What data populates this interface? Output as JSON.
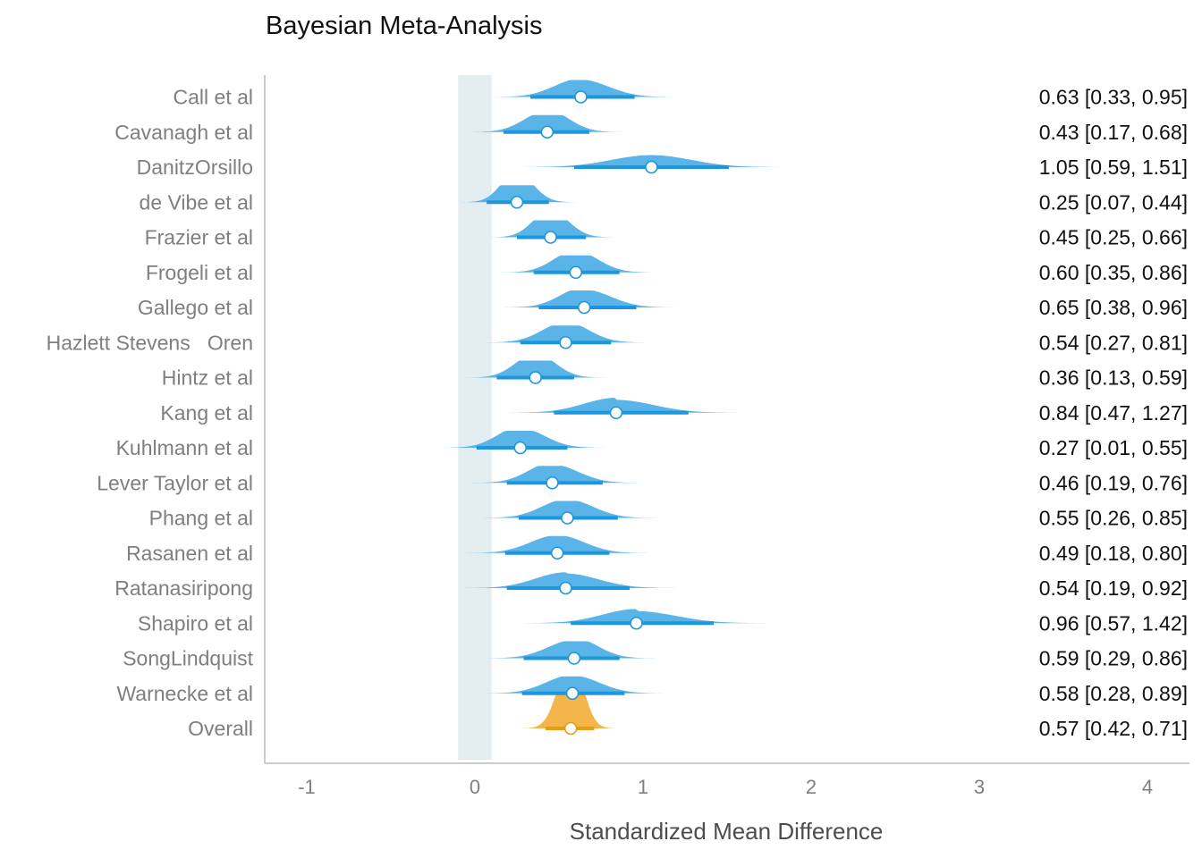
{
  "chart_data": {
    "type": "forest",
    "title": "Bayesian Meta-Analysis",
    "xlabel": "Standardized Mean Difference",
    "ylabel": "",
    "xlim": [
      -1.25,
      4.25
    ],
    "xticks": [
      "-1",
      "0",
      "1",
      "2",
      "3",
      "4"
    ],
    "xtick_values": [
      -1,
      0,
      1,
      2,
      3,
      4
    ],
    "rope": [
      -0.1,
      0.1
    ],
    "grid": false,
    "colors": {
      "study": "#5ab4e8",
      "study_interval": "#1c96dd",
      "overall": "#f4b64a",
      "overall_interval": "#e39d15",
      "rope_band": "#e4eef0",
      "point_fill": "#ffffff"
    },
    "studies": [
      {
        "name": "Call et al",
        "mean": 0.63,
        "lower": 0.33,
        "upper": 0.95,
        "label": "0.63 [0.33, 0.95]",
        "overall": false
      },
      {
        "name": "Cavanagh et al",
        "mean": 0.43,
        "lower": 0.17,
        "upper": 0.68,
        "label": "0.43 [0.17, 0.68]",
        "overall": false
      },
      {
        "name": "DanitzOrsillo",
        "mean": 1.05,
        "lower": 0.59,
        "upper": 1.51,
        "label": "1.05 [0.59, 1.51]",
        "overall": false
      },
      {
        "name": "de Vibe et al",
        "mean": 0.25,
        "lower": 0.07,
        "upper": 0.44,
        "label": "0.25 [0.07, 0.44]",
        "overall": false
      },
      {
        "name": "Frazier et al",
        "mean": 0.45,
        "lower": 0.25,
        "upper": 0.66,
        "label": "0.45 [0.25, 0.66]",
        "overall": false
      },
      {
        "name": "Frogeli et al",
        "mean": 0.6,
        "lower": 0.35,
        "upper": 0.86,
        "label": "0.60 [0.35, 0.86]",
        "overall": false
      },
      {
        "name": "Gallego et al",
        "mean": 0.65,
        "lower": 0.38,
        "upper": 0.96,
        "label": "0.65 [0.38, 0.96]",
        "overall": false
      },
      {
        "name": "Hazlett Stevens   Oren",
        "mean": 0.54,
        "lower": 0.27,
        "upper": 0.81,
        "label": "0.54 [0.27, 0.81]",
        "overall": false
      },
      {
        "name": "Hintz et al",
        "mean": 0.36,
        "lower": 0.13,
        "upper": 0.59,
        "label": "0.36 [0.13, 0.59]",
        "overall": false
      },
      {
        "name": "Kang et al",
        "mean": 0.84,
        "lower": 0.47,
        "upper": 1.27,
        "label": "0.84 [0.47, 1.27]",
        "overall": false
      },
      {
        "name": "Kuhlmann et al",
        "mean": 0.27,
        "lower": 0.01,
        "upper": 0.55,
        "label": "0.27 [0.01, 0.55]",
        "overall": false
      },
      {
        "name": "Lever Taylor et al",
        "mean": 0.46,
        "lower": 0.19,
        "upper": 0.76,
        "label": "0.46 [0.19, 0.76]",
        "overall": false
      },
      {
        "name": "Phang et al",
        "mean": 0.55,
        "lower": 0.26,
        "upper": 0.85,
        "label": "0.55 [0.26, 0.85]",
        "overall": false
      },
      {
        "name": "Rasanen et al",
        "mean": 0.49,
        "lower": 0.18,
        "upper": 0.8,
        "label": "0.49 [0.18, 0.80]",
        "overall": false
      },
      {
        "name": "Ratanasiripong",
        "mean": 0.54,
        "lower": 0.19,
        "upper": 0.92,
        "label": "0.54 [0.19, 0.92]",
        "overall": false
      },
      {
        "name": "Shapiro et al",
        "mean": 0.96,
        "lower": 0.57,
        "upper": 1.42,
        "label": "0.96 [0.57, 1.42]",
        "overall": false
      },
      {
        "name": "SongLindquist",
        "mean": 0.59,
        "lower": 0.29,
        "upper": 0.86,
        "label": "0.59 [0.29, 0.86]",
        "overall": false
      },
      {
        "name": "Warnecke et al",
        "mean": 0.58,
        "lower": 0.28,
        "upper": 0.89,
        "label": "0.58 [0.28, 0.89]",
        "overall": false
      },
      {
        "name": "Overall",
        "mean": 0.57,
        "lower": 0.42,
        "upper": 0.71,
        "label": "0.57 [0.42, 0.71]",
        "overall": true
      }
    ]
  }
}
